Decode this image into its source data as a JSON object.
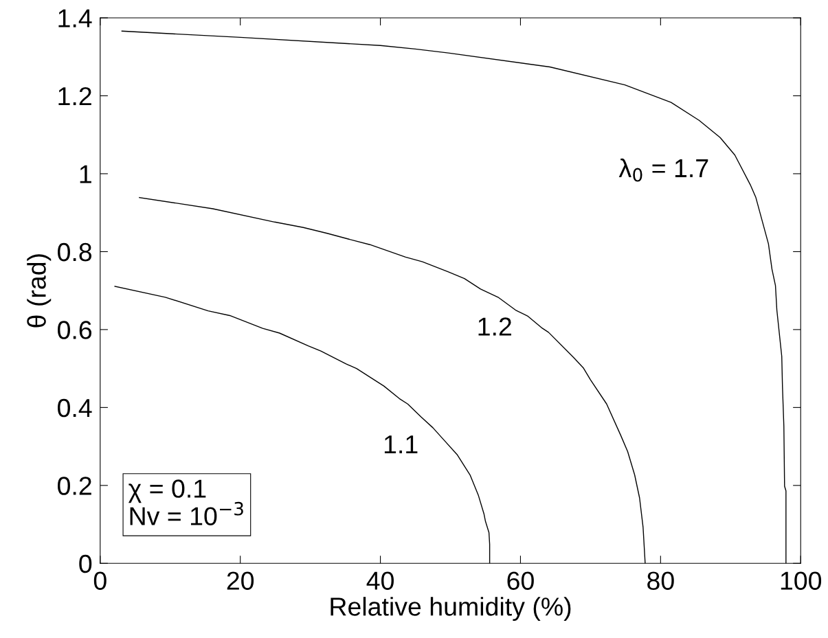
{
  "chart_data": {
    "type": "line",
    "xlabel": "Relative humidity (%)",
    "ylabel": "θ (rad)",
    "xlim": [
      0,
      100
    ],
    "xticks": [
      0,
      20,
      40,
      60,
      80,
      100
    ],
    "ylim": [
      0,
      1.4
    ],
    "yticks": [
      0,
      0.2,
      0.4,
      0.6,
      0.8,
      1,
      1.2,
      1.4
    ],
    "grid": false,
    "legend": false,
    "marker": "none",
    "line_style": "solid",
    "series": [
      {
        "color": "#000000",
        "x": [
          3.1,
          20,
          40,
          45,
          49.7,
          64.2,
          74.9,
          81.5,
          85.5,
          88.5,
          90.6,
          92.8,
          93.6,
          95.4,
          95.9,
          96.4,
          96.6,
          97.3,
          97.4,
          97.6,
          97.7,
          97.9,
          97.9
        ],
        "values": [
          1.366,
          1.35,
          1.329,
          1.32,
          1.31,
          1.274,
          1.228,
          1.183,
          1.137,
          1.093,
          1.048,
          0.972,
          0.939,
          0.82,
          0.755,
          0.713,
          0.65,
          0.531,
          0.454,
          0.352,
          0.198,
          0.186,
          0
        ]
      },
      {
        "color": "#000000",
        "x": [
          5.6,
          16.1,
          24.9,
          29.0,
          32.4,
          35.5,
          38.5,
          43.6,
          46.0,
          49.7,
          52.0,
          54.3,
          56.8,
          59.3,
          61.0,
          63.0,
          64.0,
          67.6,
          69.0,
          70.0,
          72.3,
          74.3,
          75.3,
          76.3,
          77.0,
          77.5,
          77.8
        ],
        "values": [
          0.939,
          0.91,
          0.876,
          0.862,
          0.847,
          0.832,
          0.818,
          0.786,
          0.774,
          0.748,
          0.731,
          0.704,
          0.683,
          0.65,
          0.635,
          0.605,
          0.593,
          0.528,
          0.501,
          0.471,
          0.409,
          0.329,
          0.287,
          0.227,
          0.168,
          0.093,
          0
        ]
      },
      {
        "color": "#000000",
        "x": [
          2.1,
          9.3,
          15.4,
          18.5,
          23.2,
          25.6,
          29.7,
          31.5,
          35.1,
          36.6,
          40.5,
          42.7,
          43.9,
          45.8,
          47.5,
          49.0,
          51.0,
          52.8,
          54.0,
          54.8,
          55.0,
          55.5,
          55.6,
          55.6
        ],
        "values": [
          0.711,
          0.683,
          0.648,
          0.636,
          0.603,
          0.591,
          0.558,
          0.545,
          0.512,
          0.5,
          0.455,
          0.423,
          0.409,
          0.376,
          0.348,
          0.318,
          0.278,
          0.227,
          0.174,
          0.126,
          0.108,
          0.079,
          0.049,
          0
        ]
      }
    ],
    "annotations": [
      "λ$_{0}$ = 1.7",
      "1.2",
      "1.1",
      "χ = 0.1",
      "Nv = 10$^{−3}$"
    ]
  }
}
